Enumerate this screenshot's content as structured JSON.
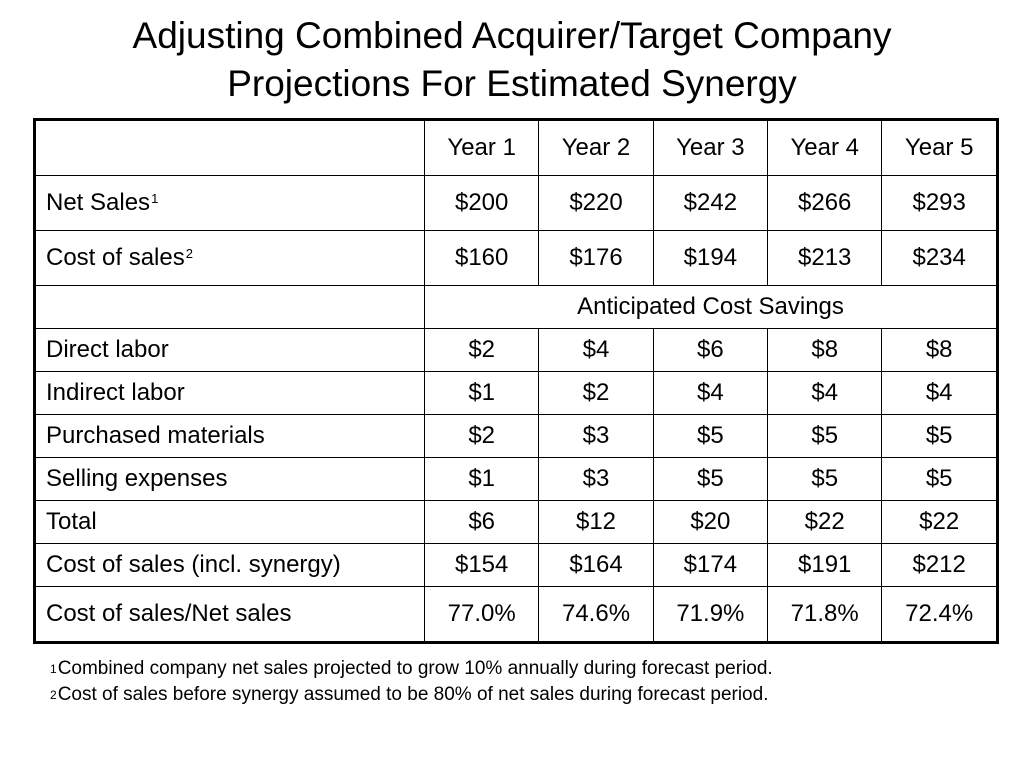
{
  "title": {
    "line1": "Adjusting Combined Acquirer/Target Company",
    "line2": "Projections For Estimated Synergy"
  },
  "table": {
    "header": [
      "Year 1",
      "Year 2",
      "Year 3",
      "Year 4",
      "Year 5"
    ],
    "net_sales": {
      "label": "Net Sales",
      "sup": "1",
      "values": [
        "$200",
        "$220",
        "$242",
        "$266",
        "$293"
      ]
    },
    "cost_of_sales": {
      "label": "Cost of sales",
      "sup": "2",
      "values": [
        "$160",
        "$176",
        "$194",
        "$213",
        "$234"
      ]
    },
    "section_label": "Anticipated Cost Savings",
    "savings_rows": [
      {
        "label": "Direct labor",
        "values": [
          "$2",
          "$4",
          "$6",
          "$8",
          "$8"
        ]
      },
      {
        "label": "Indirect labor",
        "values": [
          "$1",
          "$2",
          "$4",
          "$4",
          "$4"
        ]
      },
      {
        "label": "Purchased materials",
        "values": [
          "$2",
          "$3",
          "$5",
          "$5",
          "$5"
        ]
      },
      {
        "label": "Selling expenses",
        "values": [
          "$1",
          "$3",
          "$5",
          "$5",
          "$5"
        ]
      }
    ],
    "total": {
      "label": "Total",
      "values": [
        "$6",
        "$12",
        "$20",
        "$22",
        "$22"
      ]
    },
    "cost_incl_synergy": {
      "label": "Cost of sales (incl. synergy)",
      "values": [
        "$154",
        "$164",
        "$174",
        "$191",
        "$212"
      ]
    },
    "cost_ratio": {
      "label": "Cost of sales/Net sales",
      "values": [
        "77.0%",
        "74.6%",
        "71.9%",
        "71.8%",
        "72.4%"
      ]
    }
  },
  "footnotes": [
    {
      "mark": "1",
      "text": "Combined company net sales projected to grow 10% annually during forecast period."
    },
    {
      "mark": "2",
      "text": "Cost of sales before synergy assumed to be 80% of net sales during forecast period."
    }
  ]
}
